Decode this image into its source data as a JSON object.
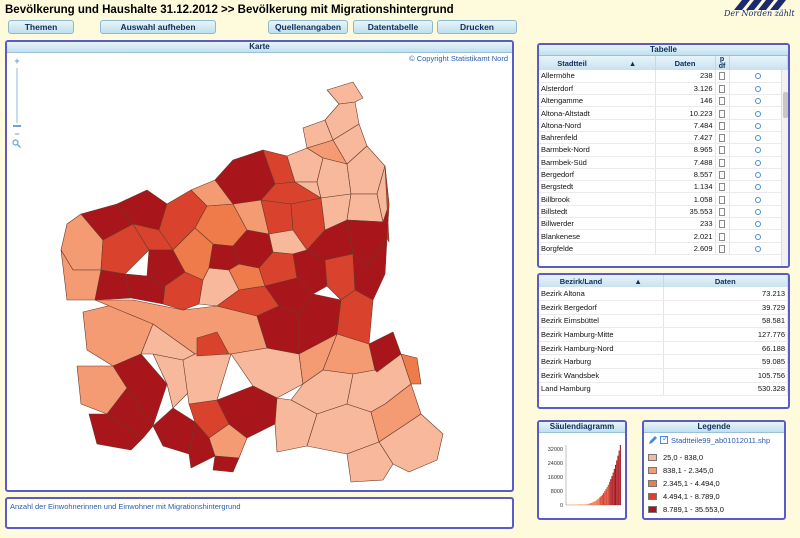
{
  "page_title": "Bevölkerung und Haushalte 31.12.2012 >> Bevölkerung mit Migrationshintergrund",
  "logo_text": "Der Norden zählt",
  "toolbar": {
    "themen": "Themen",
    "auswahl": "Auswahl aufheben",
    "quellen": "Quellenangaben",
    "datentabelle": "Datentabelle",
    "drucken": "Drucken"
  },
  "map_panel": {
    "title": "Karte",
    "copyright": "© Copyright Statistikamt Nord",
    "zoom_in": "+",
    "zoom_out": "−"
  },
  "description": "Anzahl der Einwohnerinnen und Einwohner mit Migrationshintergrund",
  "table_panel": {
    "title": "Tabelle",
    "columns": [
      "Stadtteil",
      "Daten",
      "p\ndf",
      ""
    ],
    "rows": [
      {
        "name": "Allermöhe",
        "value": "238"
      },
      {
        "name": "Alsterdorf",
        "value": "3.126"
      },
      {
        "name": "Altengamme",
        "value": "146"
      },
      {
        "name": "Altona-Altstadt",
        "value": "10.223"
      },
      {
        "name": "Altona-Nord",
        "value": "7.484"
      },
      {
        "name": "Bahrenfeld",
        "value": "7.427"
      },
      {
        "name": "Barmbek-Nord",
        "value": "8.965"
      },
      {
        "name": "Barmbek-Süd",
        "value": "7.488"
      },
      {
        "name": "Bergedorf",
        "value": "8.557"
      },
      {
        "name": "Bergstedt",
        "value": "1.134"
      },
      {
        "name": "Billbrook",
        "value": "1.058"
      },
      {
        "name": "Billstedt",
        "value": "35.553"
      },
      {
        "name": "Billwerder",
        "value": "233"
      },
      {
        "name": "Blankenese",
        "value": "2.021"
      },
      {
        "name": "Borgfelde",
        "value": "2.609"
      }
    ]
  },
  "bezirk_panel": {
    "columns": [
      "Bezirk/Land",
      "Daten"
    ],
    "rows": [
      {
        "name": "Bezirk Altona",
        "value": "73.213"
      },
      {
        "name": "Bezirk Bergedorf",
        "value": "39.729"
      },
      {
        "name": "Bezirk Eimsbüttel",
        "value": "58.581"
      },
      {
        "name": "Bezirk Hamburg-Mitte",
        "value": "127.776"
      },
      {
        "name": "Bezirk Hamburg-Nord",
        "value": "66.188"
      },
      {
        "name": "Bezirk Harburg",
        "value": "59.085"
      },
      {
        "name": "Bezirk Wandsbek",
        "value": "105.756"
      },
      {
        "name": "Land Hamburg",
        "value": "530.328"
      }
    ]
  },
  "saeulen_panel": {
    "title": "Säulendiagramm",
    "ticks": [
      "32000",
      "24000",
      "16000",
      "8000",
      "0"
    ]
  },
  "legend_panel": {
    "title": "Legende",
    "layer": "Stadtteile99_ab01012011.shp",
    "classes": [
      {
        "label": "25,0 - 838,0",
        "color": "#f7b89c"
      },
      {
        "label": "838,1 - 2.345,0",
        "color": "#f49b73"
      },
      {
        "label": "2.345,1 - 4.494,0",
        "color": "#ef7a4a"
      },
      {
        "label": "4.494,1 - 8.789,0",
        "color": "#d9432d"
      },
      {
        "label": "8.789,1 - 35.553,0",
        "color": "#a8161b"
      }
    ]
  },
  "colors": {
    "accent": "#5a5ac8",
    "background": "#fdfbdc",
    "c1": "#f7b89c",
    "c2": "#f49b73",
    "c3": "#ef7a4a",
    "c4": "#d9432d",
    "c5": "#a8161b"
  },
  "icons": {
    "pdf": "pdf-document-icon",
    "search": "magnifier-icon",
    "edit": "pencil-icon",
    "checkbox": "checkbox-icon"
  }
}
